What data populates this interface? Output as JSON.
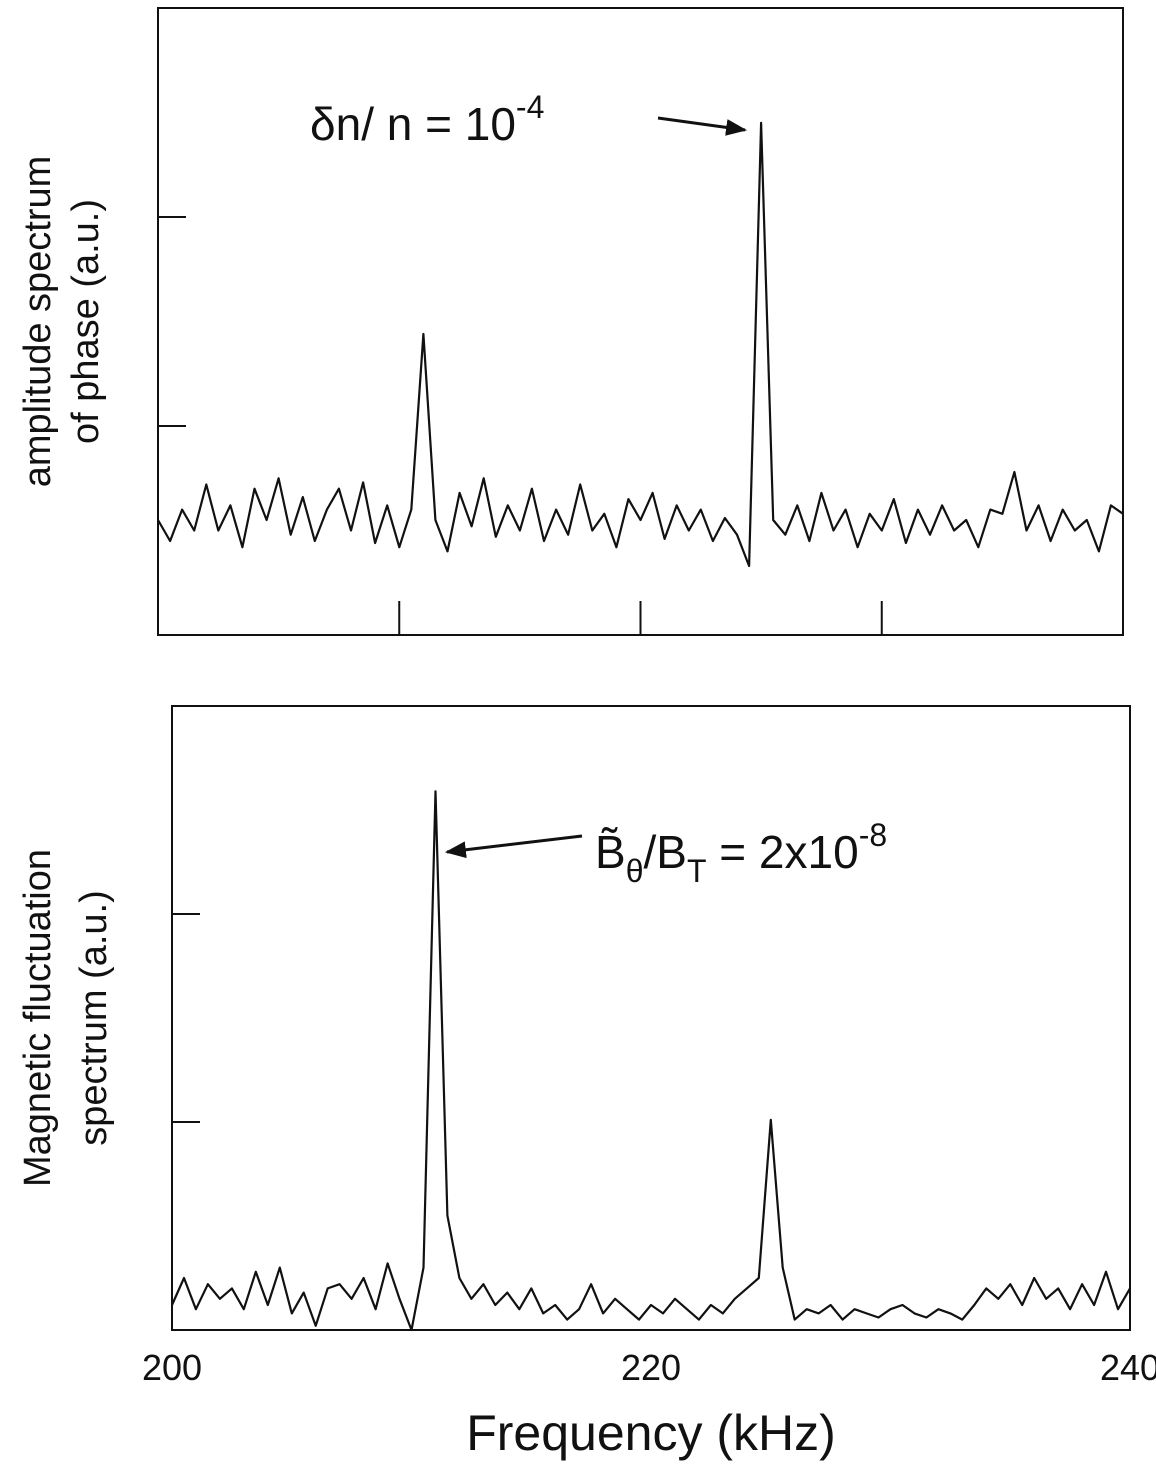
{
  "chart_data": [
    {
      "type": "line",
      "ylabel": [
        "amplitude spectrum",
        "of phase (a.u.)"
      ],
      "annotation": [
        "δn/ n = 10",
        "-4"
      ],
      "x": [
        200,
        200.5,
        201,
        201.5,
        202,
        202.5,
        203,
        203.5,
        204,
        204.5,
        205,
        205.5,
        206,
        206.5,
        207,
        207.5,
        208,
        208.5,
        209,
        209.5,
        210,
        210.5,
        211,
        211.5,
        212,
        212.5,
        213,
        213.5,
        214,
        214.5,
        215,
        215.5,
        216,
        216.5,
        217,
        217.5,
        218,
        218.5,
        219,
        219.5,
        220,
        220.5,
        221,
        221.5,
        222,
        222.5,
        223,
        223.5,
        224,
        224.5,
        225,
        225.5,
        226,
        226.5,
        227,
        227.5,
        228,
        228.5,
        229,
        229.5,
        230,
        230.5,
        231,
        231.5,
        232,
        232.5,
        233,
        233.5,
        234,
        234.5,
        235,
        235.5,
        236,
        236.5,
        237,
        237.5,
        238,
        238.5,
        239,
        239.5,
        240
      ],
      "series": [
        {
          "color": "#111111",
          "values": [
            0.55,
            0.45,
            0.6,
            0.5,
            0.72,
            0.5,
            0.62,
            0.42,
            0.7,
            0.55,
            0.75,
            0.48,
            0.66,
            0.45,
            0.6,
            0.7,
            0.5,
            0.73,
            0.44,
            0.62,
            0.42,
            0.6,
            1.44,
            0.55,
            0.4,
            0.68,
            0.52,
            0.75,
            0.47,
            0.62,
            0.5,
            0.7,
            0.45,
            0.6,
            0.48,
            0.72,
            0.5,
            0.58,
            0.42,
            0.65,
            0.55,
            0.68,
            0.46,
            0.62,
            0.5,
            0.6,
            0.45,
            0.56,
            0.48,
            0.33,
            2.45,
            0.55,
            0.48,
            0.62,
            0.45,
            0.68,
            0.5,
            0.6,
            0.42,
            0.58,
            0.5,
            0.65,
            0.44,
            0.6,
            0.48,
            0.62,
            0.5,
            0.55,
            0.42,
            0.6,
            0.58,
            0.78,
            0.5,
            0.62,
            0.45,
            0.6,
            0.5,
            0.55,
            0.4,
            0.62,
            0.58
          ]
        }
      ],
      "xlim": [
        200,
        240
      ],
      "ylim": [
        0,
        3
      ],
      "xticks": [
        210,
        220,
        230
      ],
      "yticks": [
        1,
        2
      ]
    },
    {
      "type": "line",
      "xlabel": "Frequency (kHz)",
      "ylabel": [
        "Magnetic fluctuation",
        "spectrum (a.u.)"
      ],
      "annotation": [
        "B̃",
        "θ",
        "/B",
        "T",
        " = 2x10",
        "-8"
      ],
      "x": [
        200,
        200.5,
        201,
        201.5,
        202,
        202.5,
        203,
        203.5,
        204,
        204.5,
        205,
        205.5,
        206,
        206.5,
        207,
        207.5,
        208,
        208.5,
        209,
        209.5,
        210,
        210.5,
        211,
        211.5,
        212,
        212.5,
        213,
        213.5,
        214,
        214.5,
        215,
        215.5,
        216,
        216.5,
        217,
        217.5,
        218,
        218.5,
        219,
        219.5,
        220,
        220.5,
        221,
        221.5,
        222,
        222.5,
        223,
        223.5,
        224,
        224.5,
        225,
        225.5,
        226,
        226.5,
        227,
        227.5,
        228,
        228.5,
        229,
        229.5,
        230,
        230.5,
        231,
        231.5,
        232,
        232.5,
        233,
        233.5,
        234,
        234.5,
        235,
        235.5,
        236,
        236.5,
        237,
        237.5,
        238,
        238.5,
        239,
        239.5,
        240
      ],
      "series": [
        {
          "color": "#111111",
          "values": [
            0.12,
            0.25,
            0.1,
            0.22,
            0.15,
            0.2,
            0.1,
            0.28,
            0.12,
            0.3,
            0.08,
            0.18,
            0.02,
            0.2,
            0.22,
            0.15,
            0.25,
            0.1,
            0.32,
            0.15,
            0,
            0.3,
            2.59,
            0.55,
            0.25,
            0.15,
            0.22,
            0.12,
            0.18,
            0.1,
            0.2,
            0.08,
            0.12,
            0.05,
            0.1,
            0.22,
            0.08,
            0.15,
            0.1,
            0.05,
            0.12,
            0.08,
            0.15,
            0.1,
            0.05,
            0.12,
            0.08,
            0.15,
            0.2,
            0.25,
            1.01,
            0.3,
            0.05,
            0.1,
            0.08,
            0.12,
            0.05,
            0.1,
            0.08,
            0.06,
            0.1,
            0.12,
            0.08,
            0.06,
            0.1,
            0.08,
            0.05,
            0.12,
            0.2,
            0.15,
            0.22,
            0.12,
            0.25,
            0.15,
            0.2,
            0.1,
            0.22,
            0.12,
            0.28,
            0.1,
            0.2
          ]
        }
      ],
      "xlim": [
        200,
        240
      ],
      "ylim": [
        0,
        3
      ],
      "xticks": [
        200,
        220,
        240
      ],
      "yticks": [
        1,
        2
      ]
    }
  ]
}
